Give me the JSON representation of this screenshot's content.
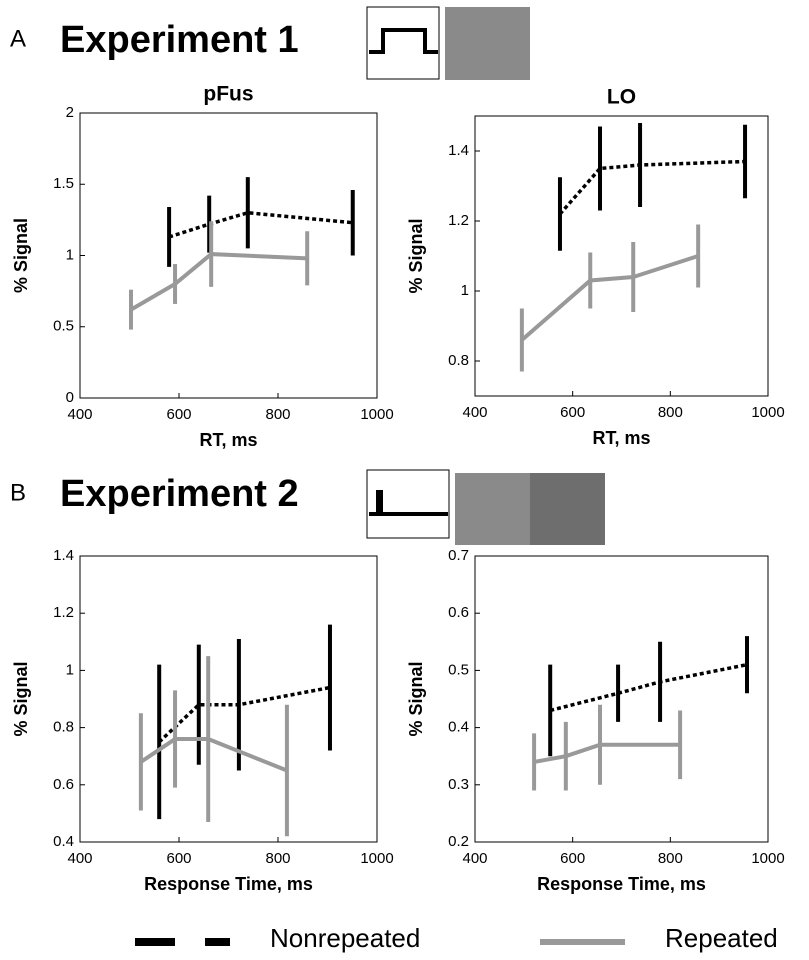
{
  "panels": [
    {
      "letter": "A",
      "title": "Experiment 1"
    },
    {
      "letter": "B",
      "title": "Experiment 2"
    }
  ],
  "legend": [
    "Nonrepeated",
    "Repeated"
  ],
  "chart_data": [
    {
      "type": "line",
      "title": "pFus",
      "xlabel": "RT, ms",
      "ylabel": "% Signal",
      "xlim": [
        400,
        1000
      ],
      "xticks": [
        400,
        600,
        800,
        1000
      ],
      "ylim": [
        0,
        2
      ],
      "yticks": [
        0,
        0.5,
        1,
        1.5,
        2
      ],
      "series": [
        {
          "color": "#000000",
          "style": "dotted",
          "x": [
            580,
            661,
            739,
            951
          ],
          "values": [
            1.13,
            1.22,
            1.3,
            1.23
          ],
          "errors": [
            0.21,
            0.2,
            0.25,
            0.23
          ]
        },
        {
          "color": "#999999",
          "style": "solid",
          "x": [
            503,
            592,
            665,
            859
          ],
          "values": [
            0.62,
            0.8,
            1.01,
            0.98
          ],
          "errors": [
            0.14,
            0.14,
            0.23,
            0.19
          ]
        }
      ]
    },
    {
      "type": "line",
      "title": "LO",
      "xlabel": "RT, ms",
      "ylabel": "% Signal",
      "xlim": [
        400,
        1000
      ],
      "xticks": [
        400,
        600,
        800,
        1000
      ],
      "ylim": [
        0.7,
        1.5
      ],
      "yticks": [
        0.8,
        1,
        1.2,
        1.4
      ],
      "series": [
        {
          "color": "#000000",
          "style": "dotted",
          "x": [
            574,
            656,
            738,
            953
          ],
          "values": [
            1.22,
            1.35,
            1.36,
            1.37
          ],
          "errors": [
            0.105,
            0.12,
            0.12,
            0.105
          ]
        },
        {
          "color": "#999999",
          "style": "solid",
          "x": [
            496,
            636,
            724,
            857
          ],
          "values": [
            0.86,
            1.03,
            1.04,
            1.1
          ],
          "errors": [
            0.09,
            0.08,
            0.1,
            0.09
          ]
        }
      ]
    },
    {
      "type": "line",
      "xlabel": "Response Time, ms",
      "ylabel": "% Signal",
      "xlim": [
        400,
        1000
      ],
      "xticks": [
        400,
        600,
        800,
        1000
      ],
      "ylim": [
        0.4,
        1.4
      ],
      "yticks": [
        0.4,
        0.6,
        0.8,
        1,
        1.2,
        1.4
      ],
      "series": [
        {
          "color": "#000000",
          "style": "dotted",
          "x": [
            560,
            640,
            721,
            905
          ],
          "values": [
            0.75,
            0.88,
            0.88,
            0.94
          ],
          "errors": [
            0.27,
            0.21,
            0.23,
            0.22
          ]
        },
        {
          "color": "#999999",
          "style": "solid",
          "x": [
            523,
            592,
            659,
            818
          ],
          "values": [
            0.68,
            0.76,
            0.76,
            0.65
          ],
          "errors": [
            0.17,
            0.17,
            0.29,
            0.23
          ]
        }
      ]
    },
    {
      "type": "line",
      "xlabel": "Response Time, ms",
      "ylabel": "% Signal",
      "xlim": [
        400,
        1000
      ],
      "xticks": [
        400,
        600,
        800,
        1000
      ],
      "ylim": [
        0.2,
        0.7
      ],
      "yticks": [
        0.2,
        0.3,
        0.4,
        0.5,
        0.6,
        0.7
      ],
      "series": [
        {
          "color": "#000000",
          "style": "dotted",
          "x": [
            554,
            693,
            779,
            957
          ],
          "values": [
            0.43,
            0.46,
            0.48,
            0.51
          ],
          "errors": [
            0.08,
            0.05,
            0.07,
            0.05
          ]
        },
        {
          "color": "#999999",
          "style": "solid",
          "x": [
            521,
            586,
            656,
            820
          ],
          "values": [
            0.34,
            0.35,
            0.37,
            0.37
          ],
          "errors": [
            0.05,
            0.06,
            0.07,
            0.06
          ]
        }
      ]
    }
  ]
}
